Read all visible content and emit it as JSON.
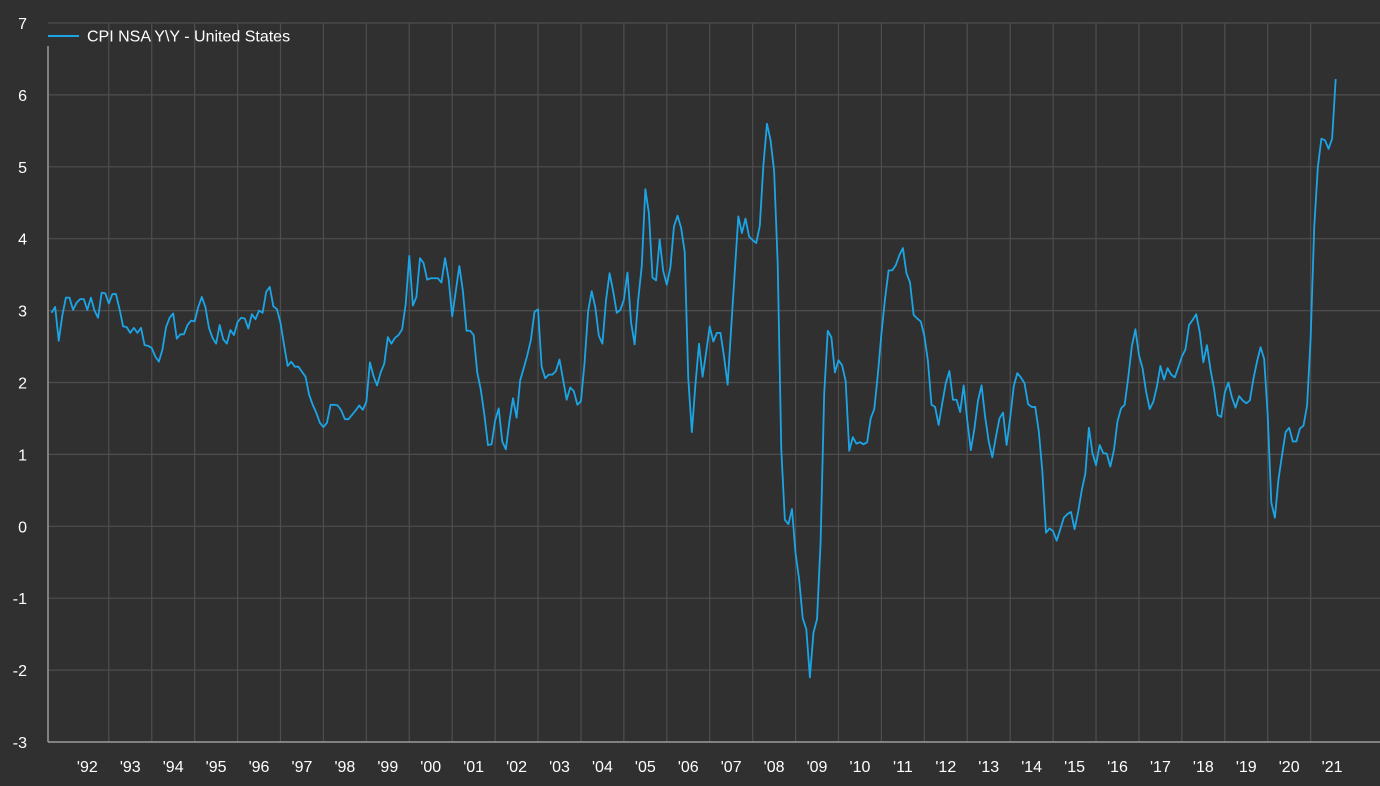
{
  "colors": {
    "background": "#303030",
    "grid": "#4e4e4e",
    "axis": "#9a9a9a",
    "text": "#ffffff",
    "series": "#1ba5e6"
  },
  "chart_data": {
    "type": "line",
    "title": "",
    "xlabel": "",
    "ylabel": "",
    "ylim": [
      -3,
      7
    ],
    "yticks": [
      "7",
      "6",
      "5",
      "4",
      "3",
      "2",
      "1",
      "0",
      "-1",
      "-2",
      "-3"
    ],
    "xticks": [
      "'92",
      "'93",
      "'94",
      "'95",
      "'96",
      "'97",
      "'98",
      "'99",
      "'00",
      "'01",
      "'02",
      "'03",
      "'04",
      "'05",
      "'06",
      "'07",
      "'08",
      "'09",
      "'10",
      "'11",
      "'12",
      "'13",
      "'14",
      "'15",
      "'16",
      "'17",
      "'18",
      "'19",
      "'20",
      "'21"
    ],
    "xlim": [
      "1991-08",
      "2021-12"
    ],
    "grid": true,
    "legend": "top-left",
    "series": [
      {
        "name": "CPI NSA Y\\Y - United States",
        "start": "1991-09",
        "frequency": "monthly",
        "values": [
          2.97,
          3.05,
          2.58,
          2.93,
          3.18,
          3.18,
          3.01,
          3.11,
          3.16,
          3.16,
          3.01,
          3.18,
          3.0,
          2.9,
          3.25,
          3.24,
          3.1,
          3.23,
          3.23,
          3.02,
          2.78,
          2.77,
          2.69,
          2.76,
          2.69,
          2.76,
          2.52,
          2.51,
          2.48,
          2.36,
          2.29,
          2.46,
          2.77,
          2.9,
          2.96,
          2.61,
          2.67,
          2.67,
          2.8,
          2.86,
          2.85,
          3.05,
          3.19,
          3.05,
          2.76,
          2.62,
          2.54,
          2.8,
          2.6,
          2.54,
          2.73,
          2.66,
          2.84,
          2.9,
          2.89,
          2.75,
          2.95,
          2.88,
          3.0,
          2.97,
          3.26,
          3.33,
          3.06,
          3.02,
          2.83,
          2.52,
          2.23,
          2.29,
          2.22,
          2.22,
          2.15,
          2.08,
          1.83,
          1.69,
          1.58,
          1.44,
          1.38,
          1.44,
          1.69,
          1.69,
          1.68,
          1.61,
          1.49,
          1.49,
          1.55,
          1.61,
          1.68,
          1.62,
          1.73,
          2.28,
          2.09,
          1.96,
          2.14,
          2.26,
          2.63,
          2.54,
          2.62,
          2.66,
          2.74,
          3.09,
          3.76,
          3.07,
          3.19,
          3.73,
          3.66,
          3.43,
          3.45,
          3.45,
          3.45,
          3.39,
          3.73,
          3.44,
          2.92,
          3.27,
          3.62,
          3.27,
          2.72,
          2.72,
          2.66,
          2.14,
          1.9,
          1.55,
          1.13,
          1.14,
          1.47,
          1.64,
          1.18,
          1.07,
          1.46,
          1.78,
          1.51,
          2.03,
          2.2,
          2.38,
          2.59,
          2.98,
          3.02,
          2.22,
          2.06,
          2.11,
          2.11,
          2.16,
          2.32,
          2.04,
          1.76,
          1.93,
          1.88,
          1.69,
          1.74,
          2.27,
          2.99,
          3.27,
          3.05,
          2.65,
          2.54,
          3.14,
          3.52,
          3.27,
          2.97,
          3.01,
          3.15,
          3.53,
          2.84,
          2.53,
          3.15,
          3.62,
          4.69,
          4.35,
          3.46,
          3.42,
          3.99,
          3.55,
          3.36,
          3.6,
          4.17,
          4.32,
          4.15,
          3.82,
          2.06,
          1.31,
          1.97,
          2.54,
          2.08,
          2.42,
          2.78,
          2.57,
          2.69,
          2.69,
          2.36,
          1.97,
          2.76,
          3.54,
          4.31,
          4.08,
          4.28,
          4.03,
          3.98,
          3.94,
          4.18,
          5.02,
          5.6,
          5.37,
          4.94,
          3.66,
          1.07,
          0.09,
          0.03,
          0.24,
          -0.38,
          -0.74,
          -1.28,
          -1.43,
          -2.1,
          -1.48,
          -1.29,
          -0.21,
          1.84,
          2.72,
          2.63,
          2.14,
          2.31,
          2.24,
          2.02,
          1.05,
          1.24,
          1.15,
          1.17,
          1.14,
          1.17,
          1.5,
          1.63,
          2.11,
          2.68,
          3.16,
          3.56,
          3.56,
          3.63,
          3.77,
          3.87,
          3.52,
          3.39,
          2.94,
          2.89,
          2.85,
          2.65,
          2.3,
          1.69,
          1.66,
          1.41,
          1.71,
          1.99,
          2.16,
          1.76,
          1.76,
          1.59,
          1.96,
          1.47,
          1.06,
          1.36,
          1.75,
          1.96,
          1.52,
          1.18,
          0.96,
          1.24,
          1.5,
          1.58,
          1.13,
          1.51,
          1.95,
          2.13,
          2.07,
          1.99,
          1.7,
          1.66,
          1.66,
          1.32,
          0.76,
          -0.09,
          -0.03,
          -0.07,
          -0.2,
          -0.04,
          0.12,
          0.17,
          0.2,
          -0.04,
          0.2,
          0.5,
          0.73,
          1.37,
          1.02,
          0.85,
          1.13,
          1.02,
          1.01,
          0.83,
          1.06,
          1.46,
          1.64,
          1.69,
          2.07,
          2.5,
          2.74,
          2.38,
          2.2,
          1.87,
          1.63,
          1.73,
          1.94,
          2.23,
          2.04,
          2.2,
          2.11,
          2.07,
          2.21,
          2.36,
          2.46,
          2.8,
          2.87,
          2.95,
          2.7,
          2.28,
          2.52,
          2.18,
          1.91,
          1.55,
          1.52,
          1.86,
          2.0,
          1.79,
          1.65,
          1.81,
          1.75,
          1.71,
          1.75,
          2.05,
          2.29,
          2.49,
          2.33,
          1.54,
          0.33,
          0.12,
          0.65,
          0.99,
          1.31,
          1.37,
          1.18,
          1.18,
          1.36,
          1.4,
          1.68,
          2.62,
          4.16,
          4.99,
          5.39,
          5.37,
          5.25,
          5.39,
          6.22
        ]
      }
    ]
  }
}
